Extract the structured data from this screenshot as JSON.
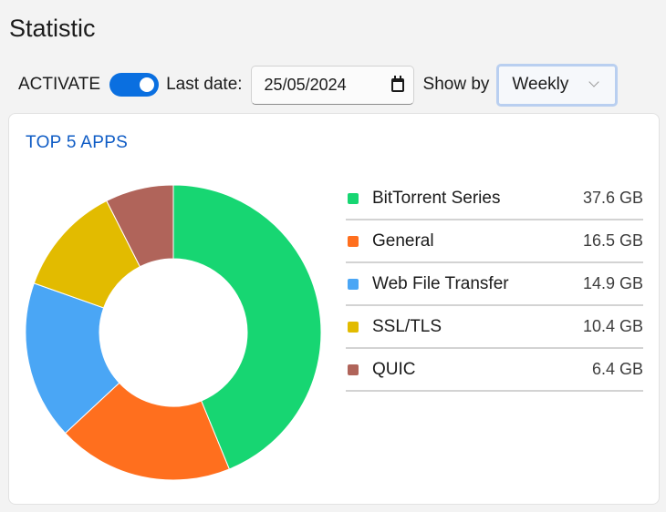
{
  "header": {
    "title": "Statistic"
  },
  "toolbar": {
    "activate_label": "ACTIVATE",
    "activate_on": true,
    "last_date_label": "Last date:",
    "last_date_value": "25/05/2024",
    "show_by_label": "Show by",
    "show_by_value": "Weekly"
  },
  "card": {
    "title": "TOP 5 APPS"
  },
  "chart_data": {
    "type": "pie",
    "donut": true,
    "unit": "GB",
    "categories": [
      "BitTorrent Series",
      "General",
      "Web File Transfer",
      "SSL/TLS",
      "QUIC"
    ],
    "values": [
      37.6,
      16.5,
      14.9,
      10.4,
      6.4
    ],
    "labels": [
      "37.6 GB",
      "16.5 GB",
      "14.9 GB",
      "10.4 GB",
      "6.4 GB"
    ],
    "colors": [
      "#17d672",
      "#ff6f1e",
      "#4aa6f5",
      "#e2bb00",
      "#b0645a"
    ],
    "legend_position": "right"
  }
}
